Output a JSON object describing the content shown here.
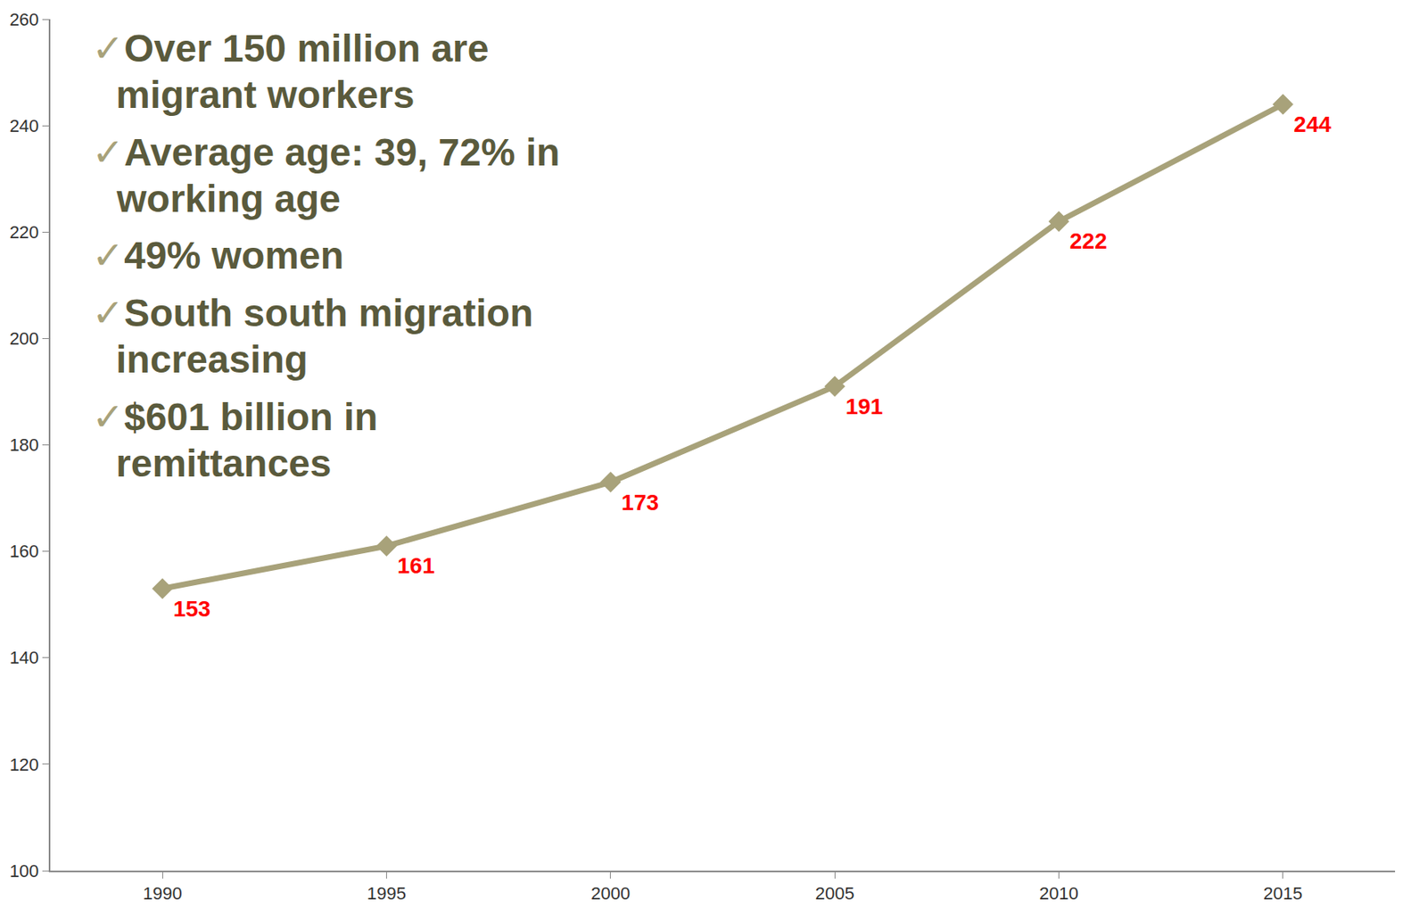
{
  "chart_data": {
    "type": "line",
    "x": [
      1990,
      1995,
      2000,
      2005,
      2010,
      2015
    ],
    "values": [
      153,
      161,
      173,
      191,
      222,
      244
    ],
    "color": "#a8a27a",
    "marker": "diamond",
    "data_labels": true,
    "grid": false,
    "xlim": [
      1987.5,
      2017.5
    ],
    "xticks": [
      1990,
      1995,
      2000,
      2005,
      2010,
      2015
    ],
    "ylim": [
      100,
      260
    ],
    "yticks": [
      100,
      120,
      140,
      160,
      180,
      200,
      220,
      240,
      260
    ],
    "annotations": [
      "✓Over 150 million are migrant workers",
      "✓Average age: 39, 72% in working age",
      "✓49% women",
      "✓South south migration increasing",
      "✓$601 billion in remittances"
    ]
  }
}
